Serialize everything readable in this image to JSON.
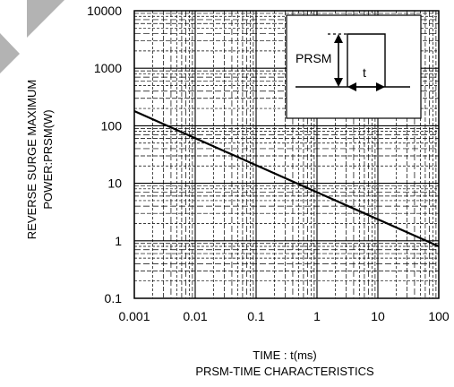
{
  "chart_data": {
    "type": "line",
    "x_scale": "log",
    "y_scale": "log",
    "xlim": [
      0.001,
      100
    ],
    "ylim": [
      0.1,
      10000
    ],
    "x_ticks": [
      "0.001",
      "0.01",
      "0.1",
      "1",
      "10",
      "100"
    ],
    "y_ticks": [
      "0.1",
      "1",
      "10",
      "100",
      "1000",
      "10000"
    ],
    "xlabel": "TIME : t(ms)",
    "ylabel_lines": [
      "REVERSE  SURGE MAXIMUM",
      "POWER:PRSM(W)"
    ],
    "caption": "PRSM-TIME CHARACTERISTICS",
    "grid": true,
    "series": [
      {
        "x": [
          0.001,
          100
        ],
        "y": [
          180,
          0.8
        ]
      }
    ],
    "inset": {
      "label_power": "PRSM",
      "label_time": "t"
    }
  },
  "colors": {
    "line": "#000000",
    "grid": "#000000",
    "ribbon": "#b3b3b3",
    "background": "#ffffff"
  }
}
